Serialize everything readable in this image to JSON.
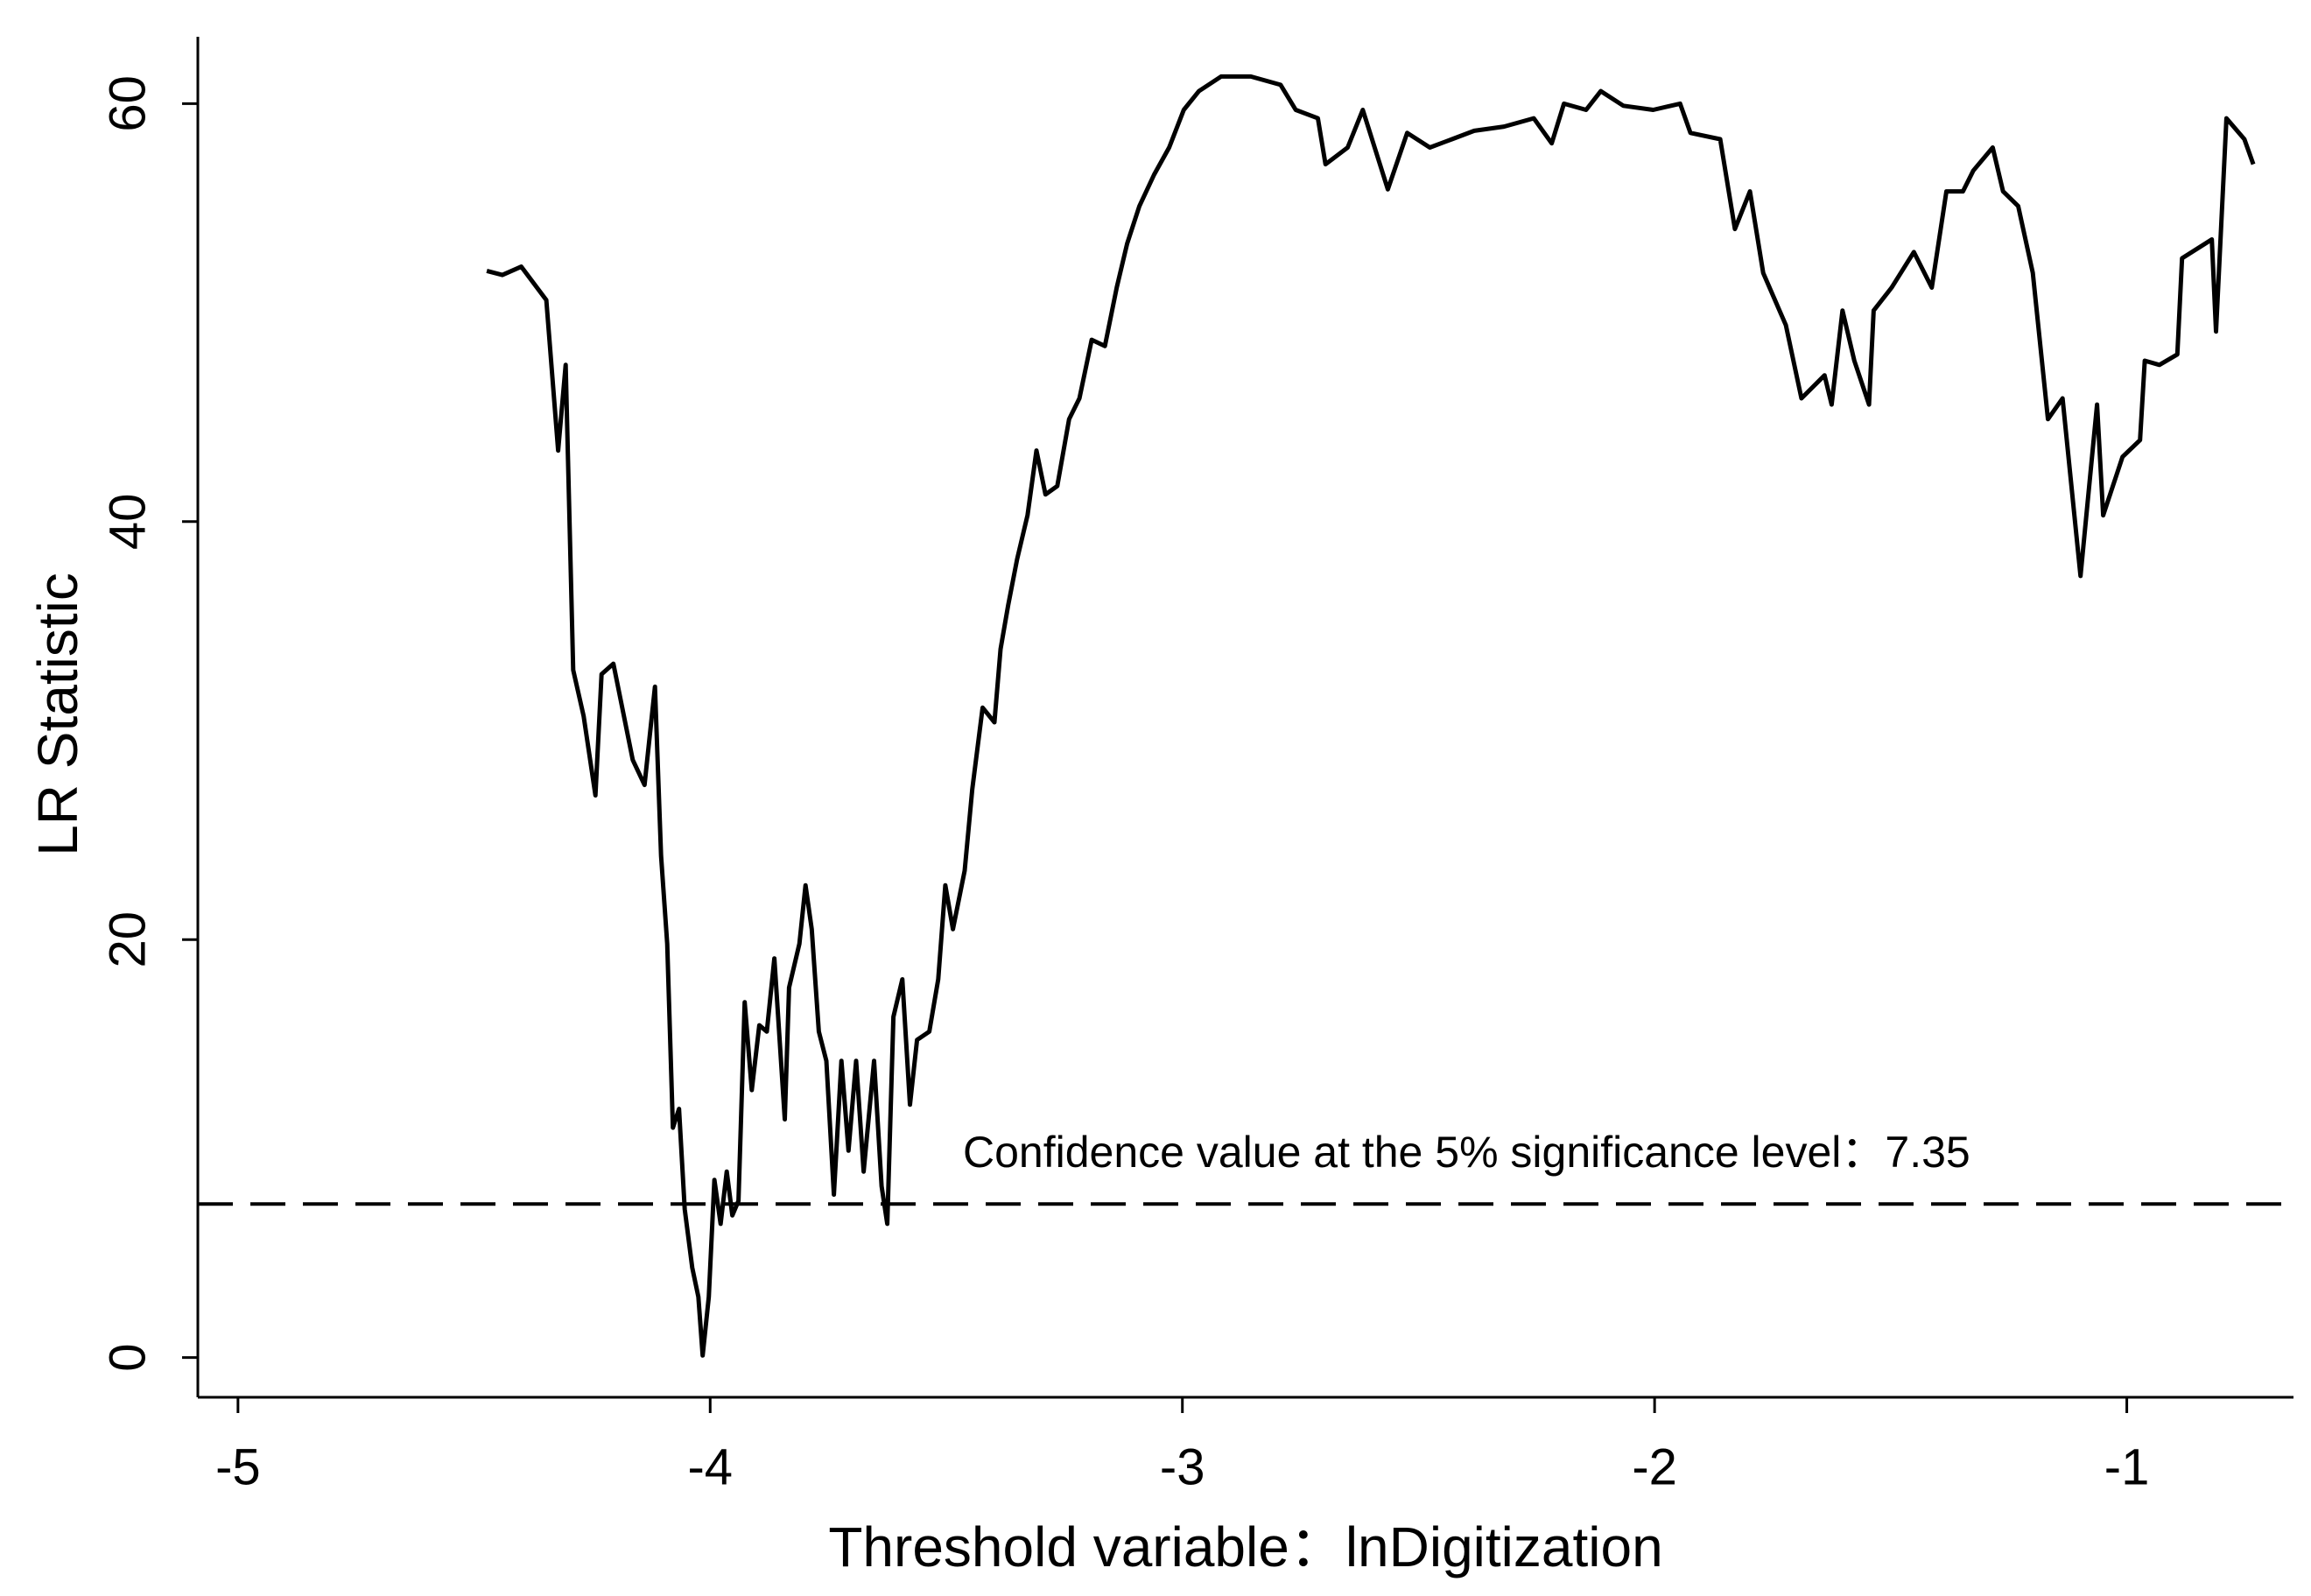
{
  "chart_data": {
    "type": "line",
    "xlabel": "Threshold variable：lnDigitization",
    "ylabel": "LR Statistic",
    "color": "#000000",
    "x": [
      -4.473,
      -4.44,
      -4.4,
      -4.347,
      -4.322,
      -4.306,
      -4.29,
      -4.268,
      -4.243,
      -4.23,
      -4.205,
      -4.164,
      -4.139,
      -4.117,
      -4.104,
      -4.091,
      -4.079,
      -4.066,
      -4.054,
      -4.038,
      -4.025,
      -4.016,
      -4.003,
      -3.991,
      -3.978,
      -3.965,
      -3.953,
      -3.94,
      -3.927,
      -3.912,
      -3.896,
      -3.88,
      -3.864,
      -3.842,
      -3.833,
      -3.811,
      -3.798,
      -3.785,
      -3.77,
      -3.754,
      -3.738,
      -3.722,
      -3.707,
      -3.691,
      -3.675,
      -3.653,
      -3.637,
      -3.625,
      -3.612,
      -3.593,
      -3.577,
      -3.562,
      -3.536,
      -3.517,
      -3.502,
      -3.486,
      -3.461,
      -3.445,
      -3.423,
      -3.398,
      -3.385,
      -3.369,
      -3.35,
      -3.328,
      -3.309,
      -3.29,
      -3.265,
      -3.24,
      -3.218,
      -3.192,
      -3.164,
      -3.139,
      -3.117,
      -3.091,
      -3.06,
      -3.028,
      -2.997,
      -2.965,
      -2.918,
      -2.855,
      -2.792,
      -2.76,
      -2.713,
      -2.697,
      -2.65,
      -2.618,
      -2.565,
      -2.524,
      -2.476,
      -2.429,
      -2.382,
      -2.319,
      -2.256,
      -2.218,
      -2.192,
      -2.145,
      -2.114,
      -2.066,
      -2.003,
      -1.946,
      -1.924,
      -1.861,
      -1.83,
      -1.798,
      -1.77,
      -1.722,
      -1.689,
      -1.64,
      -1.625,
      -1.602,
      -1.577,
      -1.546,
      -1.536,
      -1.498,
      -1.451,
      -1.413,
      -1.382,
      -1.347,
      -1.325,
      -1.284,
      -1.262,
      -1.23,
      -1.199,
      -1.167,
      -1.136,
      -1.098,
      -1.063,
      -1.05,
      -1.009,
      -0.972,
      -0.962,
      -0.931,
      -0.893,
      -0.883,
      -0.82,
      -0.811,
      -0.789,
      -0.751,
      -0.732
    ],
    "values": [
      52.0,
      51.8,
      52.2,
      50.6,
      43.4,
      47.5,
      32.9,
      30.7,
      26.9,
      32.7,
      33.2,
      28.6,
      27.4,
      32.1,
      24.0,
      19.8,
      11.0,
      11.9,
      7.1,
      4.3,
      2.9,
      0.1,
      2.9,
      8.5,
      6.4,
      8.9,
      6.8,
      7.5,
      17.0,
      12.8,
      15.9,
      15.6,
      19.1,
      11.4,
      17.7,
      19.8,
      22.6,
      20.5,
      15.6,
      14.2,
      7.8,
      14.2,
      9.9,
      14.2,
      8.9,
      14.2,
      8.2,
      6.4,
      16.3,
      18.1,
      12.1,
      15.2,
      15.6,
      18.1,
      22.6,
      20.5,
      23.3,
      27.2,
      31.1,
      30.4,
      33.9,
      36.0,
      38.2,
      40.3,
      43.4,
      41.3,
      41.7,
      44.9,
      45.9,
      48.7,
      48.4,
      51.2,
      53.3,
      55.1,
      56.6,
      57.9,
      59.7,
      60.6,
      61.3,
      61.3,
      60.9,
      59.7,
      59.3,
      57.1,
      57.9,
      59.7,
      55.9,
      58.6,
      57.9,
      58.3,
      58.7,
      58.9,
      59.3,
      58.1,
      60.0,
      59.7,
      60.6,
      59.9,
      59.7,
      60.0,
      58.6,
      58.3,
      54.0,
      55.8,
      51.9,
      49.4,
      45.9,
      47.0,
      45.6,
      50.1,
      47.7,
      45.6,
      50.1,
      51.2,
      52.9,
      51.2,
      55.8,
      55.8,
      56.8,
      57.9,
      55.8,
      55.1,
      51.9,
      44.9,
      45.9,
      37.4,
      45.6,
      40.3,
      43.1,
      43.9,
      47.7,
      47.5,
      48.0,
      52.6,
      53.5,
      49.1,
      59.3,
      58.3,
      57.1
    ],
    "reference_line": {
      "value": 7.35,
      "label": "Confidence value at the 5% significance level：7.35"
    },
    "xlim": [
      -5.085,
      -0.647
    ],
    "xticks": [
      -5,
      -4,
      -3,
      -2,
      -1
    ],
    "ylim": [
      -1.9,
      63.2
    ],
    "yticks": [
      0,
      20,
      40,
      60
    ]
  }
}
